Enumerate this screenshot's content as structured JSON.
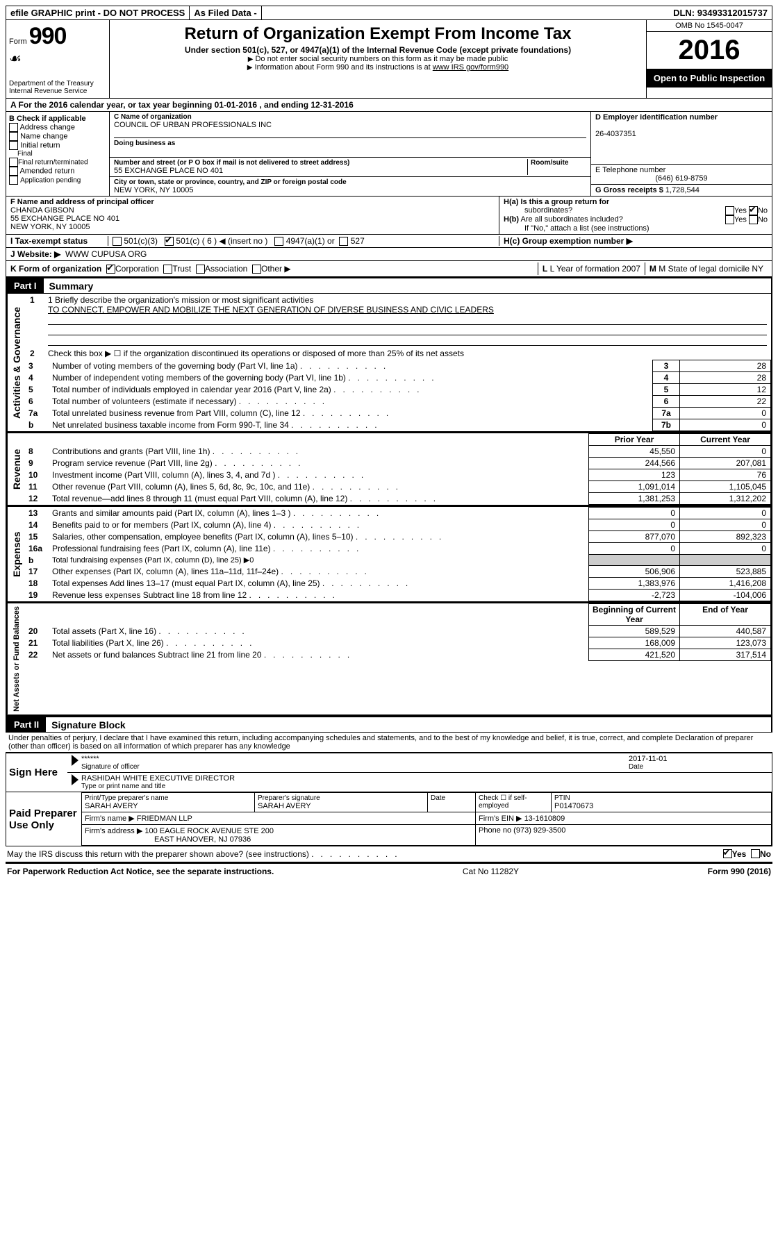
{
  "topbar": {
    "efile": "efile GRAPHIC print - DO NOT PROCESS",
    "asfiled": "As Filed Data -",
    "dln_label": "DLN:",
    "dln": "93493312015737"
  },
  "header": {
    "form_word": "Form",
    "form_num": "990",
    "dept": "Department of the Treasury",
    "irs": "Internal Revenue Service",
    "title": "Return of Organization Exempt From Income Tax",
    "subtitle": "Under section 501(c), 527, or 4947(a)(1) of the Internal Revenue Code (except private foundations)",
    "note1": "Do not enter social security numbers on this form as it may be made public",
    "note2": "Information about Form 990 and its instructions is at ",
    "note2_link": "www IRS gov/form990",
    "omb": "OMB No  1545-0047",
    "year": "2016",
    "open": "Open to Public Inspection"
  },
  "rowA": "A  For the 2016 calendar year, or tax year beginning 01-01-2016   , and ending 12-31-2016",
  "boxB": {
    "title": "B Check if applicable",
    "items": [
      "Address change",
      "Name change",
      "Initial return",
      "Final return/terminated",
      "Amended return",
      "Application pending"
    ]
  },
  "boxC": {
    "name_label": "C Name of organization",
    "name": "COUNCIL OF URBAN PROFESSIONALS INC",
    "dba_label": "Doing business as",
    "street_label": "Number and street (or P O  box if mail is not delivered to street address)",
    "room_label": "Room/suite",
    "street": "55 EXCHANGE PLACE NO 401",
    "city_label": "City or town, state or province, country, and ZIP or foreign postal code",
    "city": "NEW YORK, NY  10005"
  },
  "boxD": {
    "ein_label": "D Employer identification number",
    "ein": "26-4037351",
    "phone_label": "E Telephone number",
    "phone": "(646) 619-8759",
    "gross_label": "G Gross receipts $",
    "gross": "1,728,544"
  },
  "boxF": {
    "label": "F  Name and address of principal officer",
    "name": "CHANDA GIBSON",
    "street": "55 EXCHANGE PLACE NO 401",
    "city": "NEW YORK, NY  10005"
  },
  "boxH": {
    "a_label": "H(a) Is this a group return for",
    "a_sub": "subordinates?",
    "b_label": "H(b) Are all subordinates included?",
    "b_note": "If \"No,\" attach a list  (see instructions)",
    "c_label": "H(c) Group exemption number ▶",
    "yes": "Yes",
    "no": "No"
  },
  "rowI": {
    "label": "I  Tax-exempt status",
    "o1": "501(c)(3)",
    "o2": "501(c) ( 6 ) ◀ (insert no )",
    "o3": "4947(a)(1) or",
    "o4": "527"
  },
  "rowJ": {
    "label": "J  Website: ▶",
    "value": "WWW CUPUSA ORG"
  },
  "rowK": {
    "label": "K Form of organization",
    "corp": "Corporation",
    "trust": "Trust",
    "assoc": "Association",
    "other": "Other ▶",
    "l_label": "L Year of formation  2007",
    "m_label": "M State of legal domicile  NY"
  },
  "part1": {
    "header": "Part I",
    "title": "Summary",
    "l1_label": "1 Briefly describe the organization's mission or most significant activities",
    "mission": "TO CONNECT, EMPOWER AND MOBILIZE THE NEXT GENERATION OF DIVERSE BUSINESS AND CIVIC LEADERS",
    "l2": "Check this box ▶ ☐ if the organization discontinued its operations or disposed of more than 25% of its net assets",
    "rows_simple": [
      {
        "n": "3",
        "t": "Number of voting members of the governing body (Part VI, line 1a)",
        "v": "28"
      },
      {
        "n": "4",
        "t": "Number of independent voting members of the governing body (Part VI, line 1b)",
        "v": "28"
      },
      {
        "n": "5",
        "t": "Total number of individuals employed in calendar year 2016 (Part V, line 2a)",
        "v": "12"
      },
      {
        "n": "6",
        "t": "Total number of volunteers (estimate if necessary)",
        "v": "22"
      },
      {
        "n": "7a",
        "t": "Total unrelated business revenue from Part VIII, column (C), line 12",
        "v": "0"
      },
      {
        "n": "b",
        "t": "Net unrelated business taxable income from Form 990-T, line 34",
        "nn": "7b",
        "v": "0"
      }
    ],
    "prior": "Prior Year",
    "current": "Current Year",
    "beg": "Beginning of Current Year",
    "end": "End of Year",
    "revenue_rows": [
      {
        "n": "8",
        "t": "Contributions and grants (Part VIII, line 1h)",
        "p": "45,550",
        "c": "0"
      },
      {
        "n": "9",
        "t": "Program service revenue (Part VIII, line 2g)",
        "p": "244,566",
        "c": "207,081"
      },
      {
        "n": "10",
        "t": "Investment income (Part VIII, column (A), lines 3, 4, and 7d )",
        "p": "123",
        "c": "76"
      },
      {
        "n": "11",
        "t": "Other revenue (Part VIII, column (A), lines 5, 6d, 8c, 9c, 10c, and 11e)",
        "p": "1,091,014",
        "c": "1,105,045"
      },
      {
        "n": "12",
        "t": "Total revenue—add lines 8 through 11 (must equal Part VIII, column (A), line 12)",
        "p": "1,381,253",
        "c": "1,312,202"
      }
    ],
    "expense_rows": [
      {
        "n": "13",
        "t": "Grants and similar amounts paid (Part IX, column (A), lines 1–3 )",
        "p": "0",
        "c": "0"
      },
      {
        "n": "14",
        "t": "Benefits paid to or for members (Part IX, column (A), line 4)",
        "p": "0",
        "c": "0"
      },
      {
        "n": "15",
        "t": "Salaries, other compensation, employee benefits (Part IX, column (A), lines 5–10)",
        "p": "877,070",
        "c": "892,323"
      },
      {
        "n": "16a",
        "t": "Professional fundraising fees (Part IX, column (A), line 11e)",
        "p": "0",
        "c": "0"
      },
      {
        "n": "b",
        "t": "Total fundraising expenses (Part IX, column (D), line 25) ▶0",
        "p": "",
        "c": "",
        "shade": true
      },
      {
        "n": "17",
        "t": "Other expenses (Part IX, column (A), lines 11a–11d, 11f–24e)",
        "p": "506,906",
        "c": "523,885"
      },
      {
        "n": "18",
        "t": "Total expenses  Add lines 13–17 (must equal Part IX, column (A), line 25)",
        "p": "1,383,976",
        "c": "1,416,208"
      },
      {
        "n": "19",
        "t": "Revenue less expenses  Subtract line 18 from line 12",
        "p": "-2,723",
        "c": "-104,006"
      }
    ],
    "net_rows": [
      {
        "n": "20",
        "t": "Total assets (Part X, line 16)",
        "p": "589,529",
        "c": "440,587"
      },
      {
        "n": "21",
        "t": "Total liabilities (Part X, line 26)",
        "p": "168,009",
        "c": "123,073"
      },
      {
        "n": "22",
        "t": "Net assets or fund balances  Subtract line 21 from line 20",
        "p": "421,520",
        "c": "317,514"
      }
    ],
    "vlabels": {
      "ag": "Activities & Governance",
      "rev": "Revenue",
      "exp": "Expenses",
      "net": "Net Assets or Fund Balances"
    }
  },
  "part2": {
    "header": "Part II",
    "title": "Signature Block",
    "penalties": "Under penalties of perjury, I declare that I have examined this return, including accompanying schedules and statements, and to the best of my knowledge and belief, it is true, correct, and complete  Declaration of preparer (other than officer) is based on all information of which preparer has any knowledge",
    "sign_here": "Sign Here",
    "stars": "******",
    "sig_label": "Signature of officer",
    "date_label": "Date",
    "date": "2017-11-01",
    "name": "RASHIDAH WHITE  EXECUTIVE DIRECTOR",
    "name_label": "Type or print name and title",
    "paid": "Paid Preparer Use Only",
    "prep_name_label": "Print/Type preparer's name",
    "prep_name": "SARAH AVERY",
    "prep_sig_label": "Preparer's signature",
    "prep_sig": "SARAH AVERY",
    "prep_date_label": "Date",
    "check_label": "Check ☐ if self-employed",
    "ptin_label": "PTIN",
    "ptin": "P01470673",
    "firm_name_label": "Firm's name    ▶",
    "firm_name": "FRIEDMAN LLP",
    "firm_ein_label": "Firm's EIN ▶",
    "firm_ein": "13-1610809",
    "firm_addr_label": "Firm's address ▶",
    "firm_addr1": "100 EAGLE ROCK AVENUE STE 200",
    "firm_addr2": "EAST HANOVER, NJ  07936",
    "firm_phone_label": "Phone no",
    "firm_phone": "(973) 929-3500",
    "discuss": "May the IRS discuss this return with the preparer shown above? (see instructions)",
    "yes": "Yes",
    "no": "No"
  },
  "footer": {
    "left": "For Paperwork Reduction Act Notice, see the separate instructions.",
    "mid": "Cat  No  11282Y",
    "right": "Form 990 (2016)"
  }
}
